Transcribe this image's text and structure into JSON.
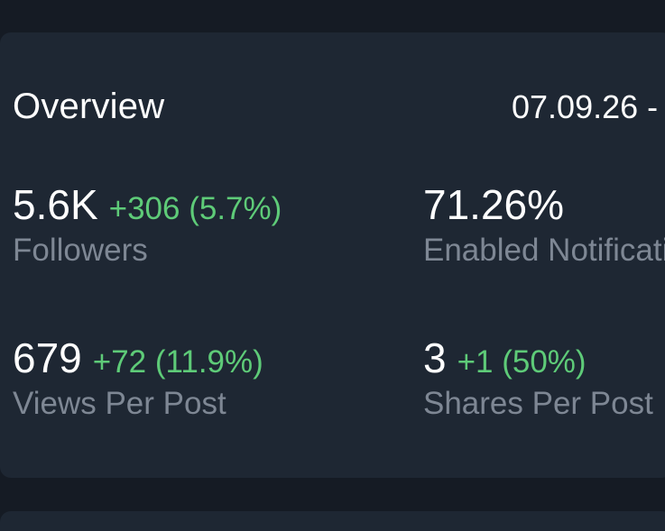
{
  "overview": {
    "title": "Overview",
    "date_range": "07.09.26 -",
    "stats": [
      {
        "value": "5.6K",
        "change": "+306 (5.7%)",
        "label": "Followers"
      },
      {
        "value": "71.26%",
        "change": "",
        "label": "Enabled Notifications"
      },
      {
        "value": "679",
        "change": "+72 (11.9%)",
        "label": "Views Per Post"
      },
      {
        "value": "3",
        "change": "+1 (50%)",
        "label": "Shares Per Post"
      }
    ]
  },
  "colors": {
    "background": "#151b24",
    "card": "#1e2733",
    "text_primary": "#ffffff",
    "text_secondary": "#7e8794",
    "positive": "#5ecb78"
  }
}
